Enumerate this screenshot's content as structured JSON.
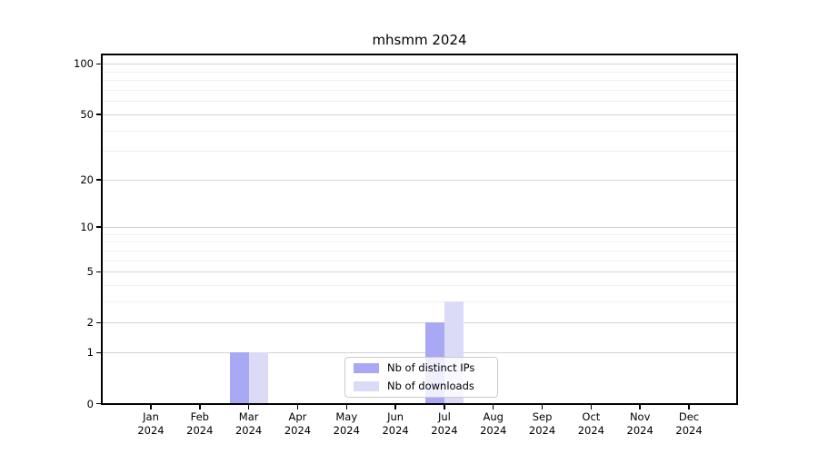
{
  "chart_data": {
    "type": "bar",
    "title": "mhsmm 2024",
    "categories": [
      "Jan",
      "Feb",
      "Mar",
      "Apr",
      "May",
      "Jun",
      "Jul",
      "Aug",
      "Sep",
      "Oct",
      "Nov",
      "Dec"
    ],
    "year": "2024",
    "series": [
      {
        "name": "Nb of distinct IPs",
        "color": "#a8a8f5",
        "values": [
          0,
          0,
          1,
          0,
          0,
          0,
          2,
          0,
          0,
          0,
          0,
          0
        ]
      },
      {
        "name": "Nb of downloads",
        "color": "#dbdbf8",
        "values": [
          0,
          0,
          1,
          0,
          0,
          0,
          3,
          0,
          0,
          0,
          0,
          0
        ]
      }
    ],
    "xlabel": "",
    "ylabel": "",
    "scale": "log1p",
    "y_tick_values": [
      0,
      1,
      2,
      5,
      10,
      20,
      50,
      100
    ],
    "minor_grid_values": [
      3,
      4,
      6,
      7,
      8,
      9,
      30,
      40,
      60,
      70,
      80,
      90
    ],
    "ylim": [
      0,
      112
    ],
    "grid": "on",
    "legend_position": "bottom-center",
    "colors": {
      "major_grid": "#d3d3d3",
      "minor_grid": "#f0f0f0",
      "axis": "#000000",
      "background": "#ffffff"
    }
  }
}
